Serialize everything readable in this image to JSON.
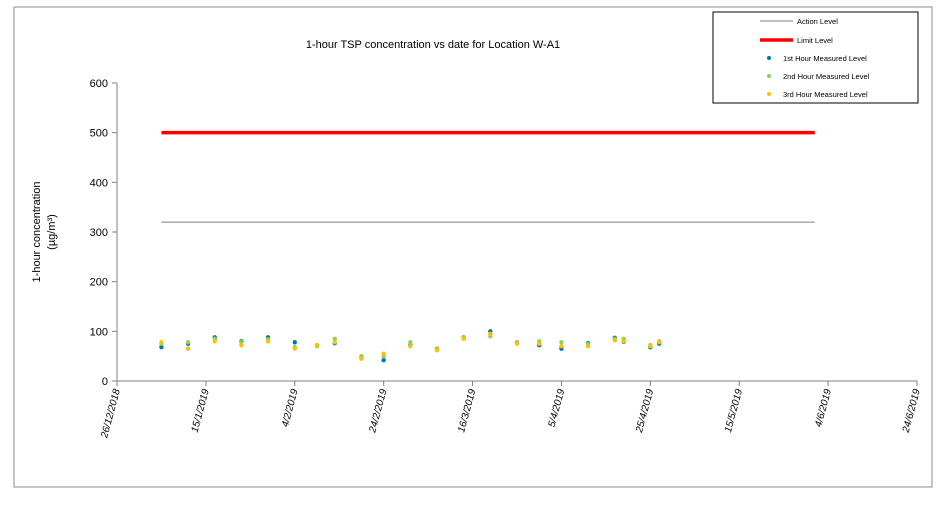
{
  "chart_data": {
    "type": "scatter",
    "title": "1-hour TSP concentration vs date for Location W-A1",
    "ylabel_line1": "1-hour concentration",
    "ylabel_line2": "(µg/m³)",
    "xlabel": "",
    "ylim": [
      0,
      600
    ],
    "yticks": [
      0,
      100,
      200,
      300,
      400,
      500,
      600
    ],
    "xlim": [
      "2018-12-26",
      "2019-06-24"
    ],
    "xtick_dates": [
      "2018-12-26",
      "2019-01-15",
      "2019-02-04",
      "2019-02-24",
      "2019-03-16",
      "2019-04-05",
      "2019-04-25",
      "2019-05-15",
      "2019-06-04",
      "2019-06-24"
    ],
    "xtick_labels": [
      "26/12/2018",
      "15/1/2019",
      "4/2/2019",
      "24/2/2019",
      "16/3/2019",
      "5/4/2019",
      "25/4/2019",
      "15/5/2019",
      "4/6/2019",
      "24/6/2019"
    ],
    "grid": false,
    "legend_position": "top-right",
    "lines": [
      {
        "name": "Action Level",
        "color": "#808080",
        "x": [
          "2019-01-05",
          "2019-06-01"
        ],
        "y": [
          320,
          320
        ]
      },
      {
        "name": "Limit Level",
        "color": "#ff0000",
        "x": [
          "2019-01-05",
          "2019-06-01"
        ],
        "y": [
          500,
          500
        ]
      }
    ],
    "series": [
      {
        "name": "1st Hour Measured Level",
        "color": "#0070c0",
        "x": [
          "2019-01-05",
          "2019-01-11",
          "2019-01-17",
          "2019-01-23",
          "2019-01-29",
          "2019-02-04",
          "2019-02-09",
          "2019-02-13",
          "2019-02-19",
          "2019-02-24",
          "2019-03-02",
          "2019-03-08",
          "2019-03-14",
          "2019-03-20",
          "2019-03-26",
          "2019-03-31",
          "2019-04-05",
          "2019-04-11",
          "2019-04-17",
          "2019-04-19",
          "2019-04-25",
          "2019-04-27"
        ],
        "y": [
          68,
          75,
          88,
          80,
          88,
          78,
          72,
          76,
          48,
          42,
          72,
          65,
          88,
          100,
          78,
          72,
          65,
          76,
          87,
          79,
          68,
          75
        ]
      },
      {
        "name": "2nd Hour Measured Level",
        "color": "#92d050",
        "x": [
          "2019-01-05",
          "2019-01-11",
          "2019-01-17",
          "2019-01-23",
          "2019-01-29",
          "2019-02-04",
          "2019-02-09",
          "2019-02-13",
          "2019-02-19",
          "2019-02-24",
          "2019-03-02",
          "2019-03-08",
          "2019-03-14",
          "2019-03-20",
          "2019-03-26",
          "2019-03-31",
          "2019-04-05",
          "2019-04-11",
          "2019-04-17",
          "2019-04-19",
          "2019-04-25",
          "2019-04-27"
        ],
        "y": [
          75,
          78,
          85,
          78,
          84,
          68,
          70,
          85,
          50,
          50,
          78,
          65,
          88,
          90,
          78,
          80,
          78,
          74,
          85,
          85,
          72,
          80
        ]
      },
      {
        "name": "3rd Hour Measured Level",
        "color": "#ffc000",
        "x": [
          "2019-01-05",
          "2019-01-11",
          "2019-01-17",
          "2019-01-23",
          "2019-01-29",
          "2019-02-04",
          "2019-02-09",
          "2019-02-13",
          "2019-02-19",
          "2019-02-24",
          "2019-03-02",
          "2019-03-08",
          "2019-03-14",
          "2019-03-20",
          "2019-03-26",
          "2019-03-31",
          "2019-04-05",
          "2019-04-11",
          "2019-04-17",
          "2019-04-19",
          "2019-04-25",
          "2019-04-27"
        ],
        "y": [
          78,
          65,
          80,
          72,
          80,
          65,
          72,
          78,
          45,
          55,
          70,
          62,
          85,
          95,
          75,
          75,
          70,
          70,
          82,
          80,
          70,
          78
        ]
      }
    ]
  }
}
